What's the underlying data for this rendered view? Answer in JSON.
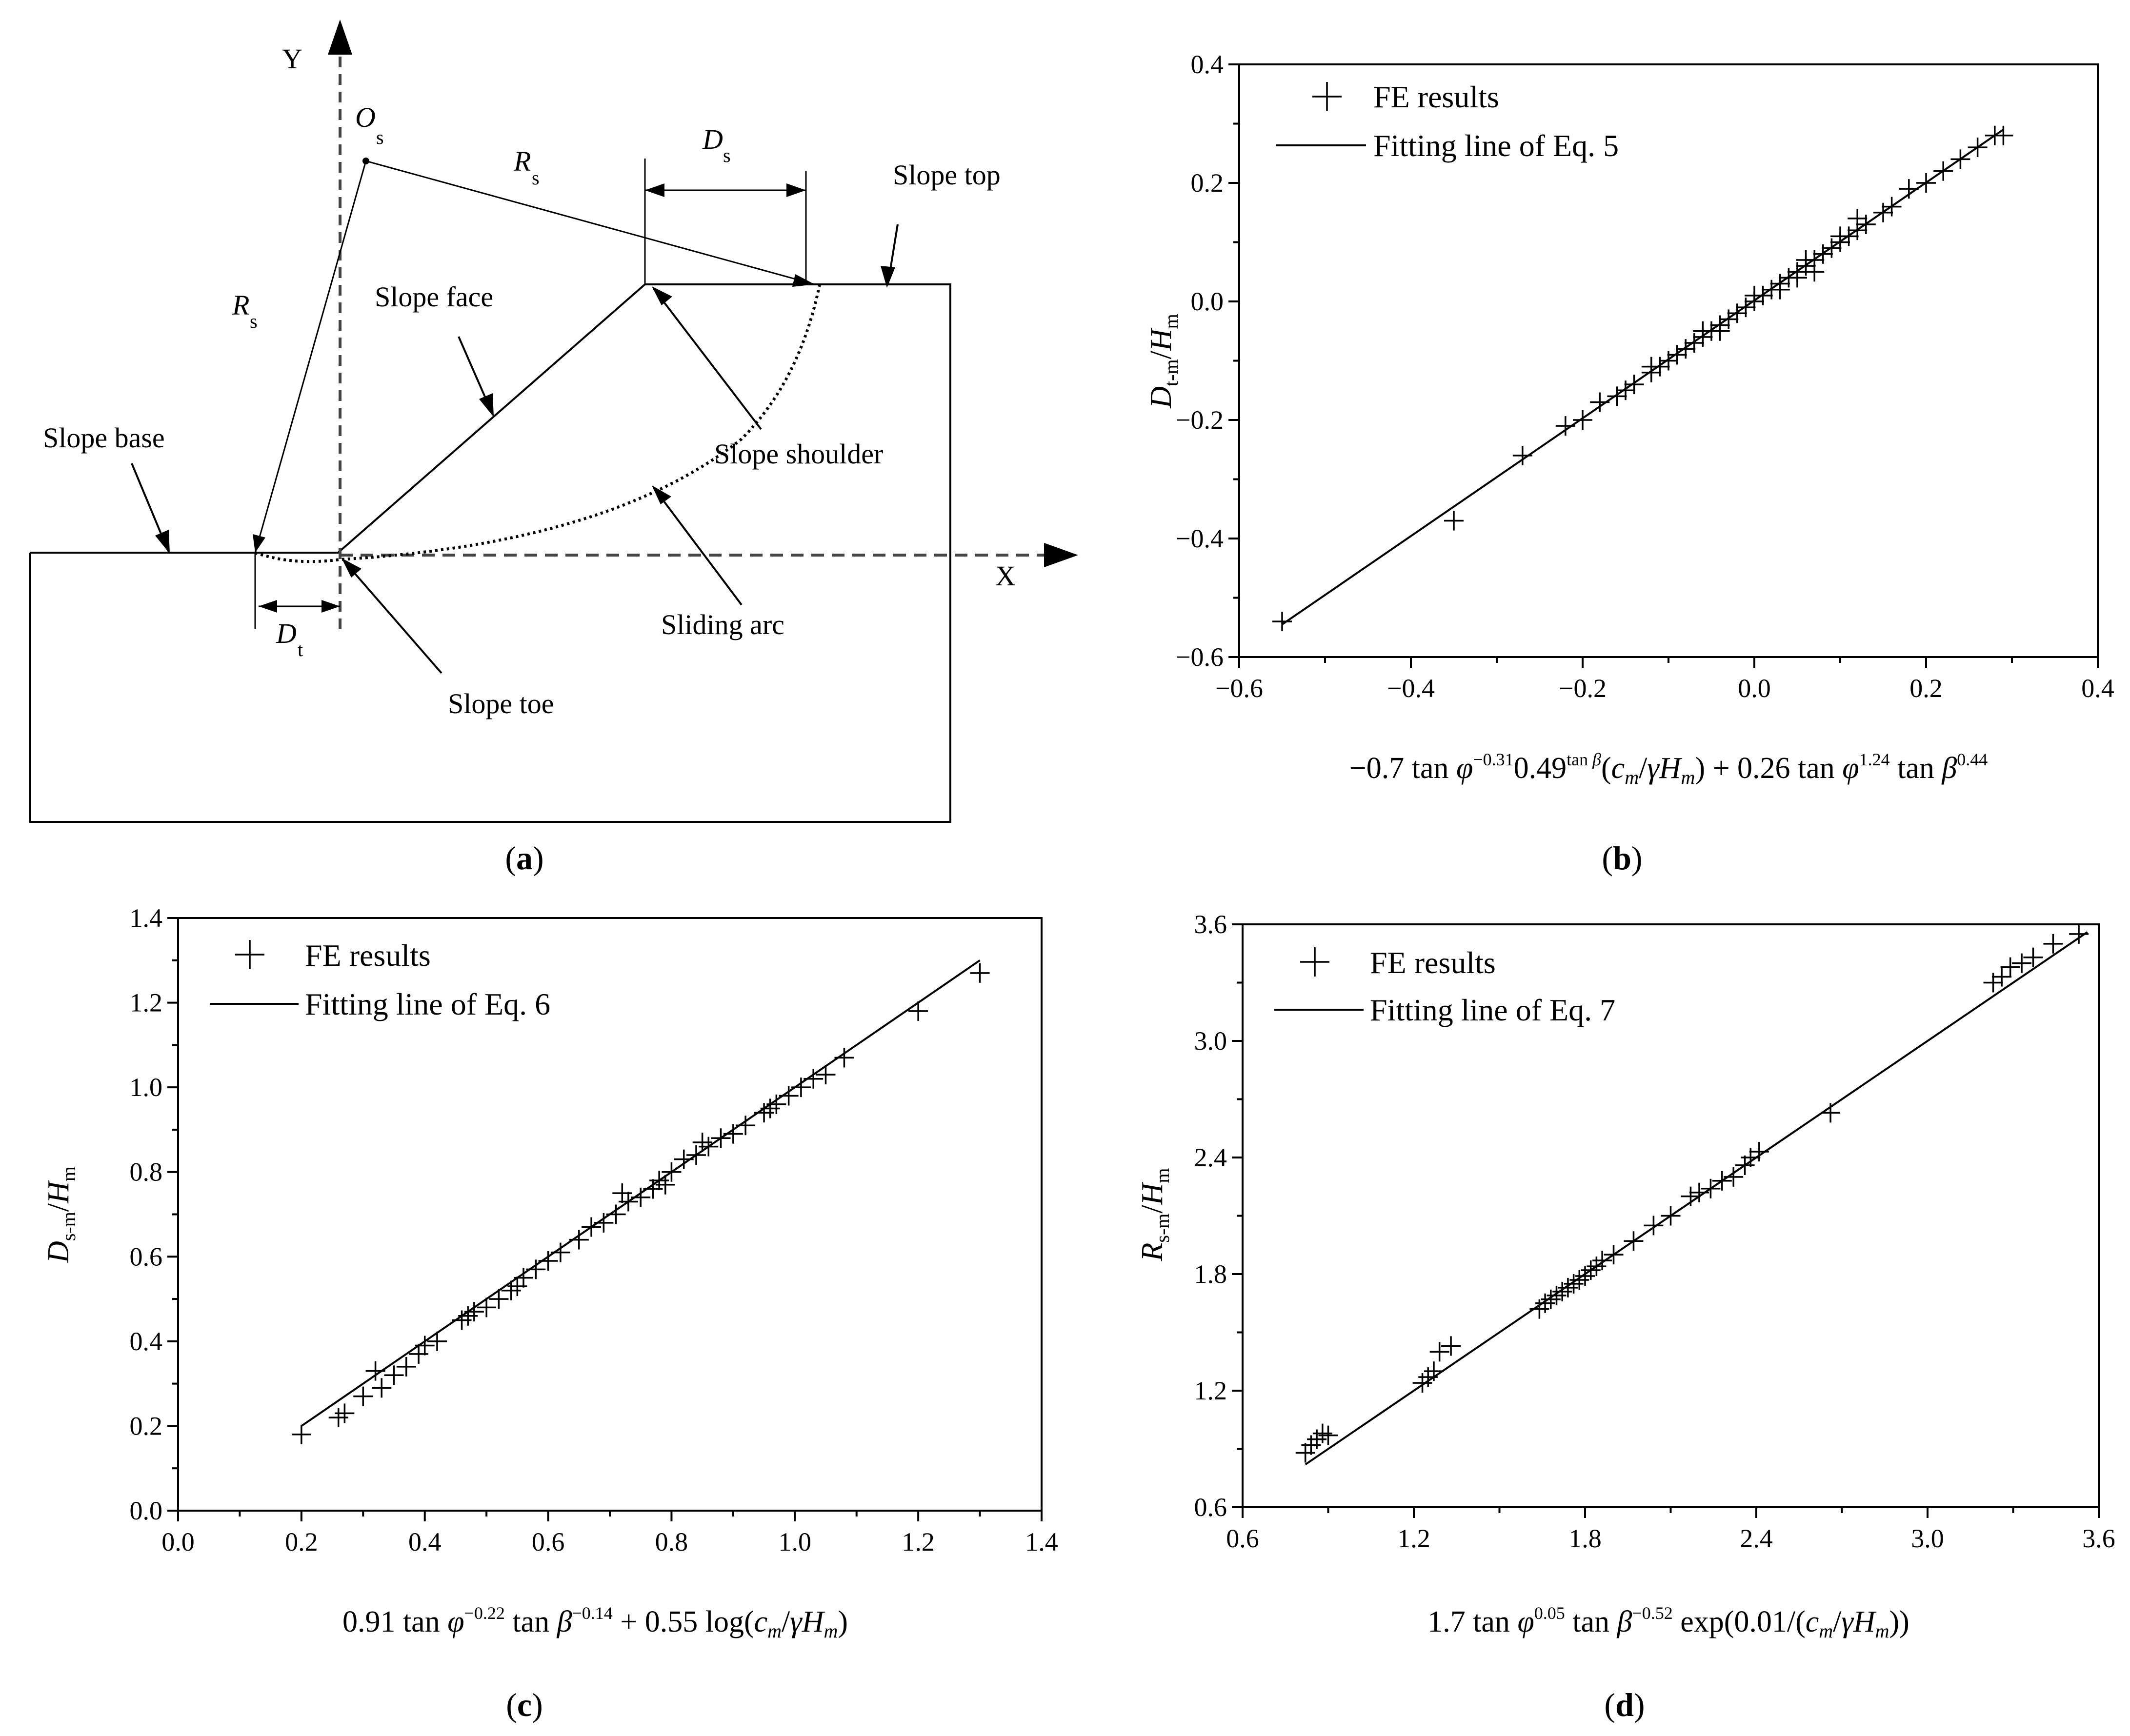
{
  "figure_a": {
    "caption": "(a)",
    "labels": {
      "y_axis": "Y",
      "x_axis": "X",
      "os": "O",
      "os_sub": "s",
      "rs_top": "R",
      "rs_top_sub": "s",
      "rs_left": "R",
      "rs_left_sub": "s",
      "ds": "D",
      "ds_sub": "s",
      "dt": "D",
      "dt_sub": "t",
      "slope_top": "Slope top",
      "slope_face": "Slope face",
      "slope_base": "Slope base",
      "slope_shoulder": "Slope shoulder",
      "sliding_arc": "Sliding arc",
      "slope_toe": "Slope toe"
    }
  },
  "chart_data": [
    {
      "id": "b",
      "type": "scatter",
      "caption": "(b)",
      "xlabel": "−0.7 tan φ^−0.31 0.49^tan β (c_m/γH_m) + 0.26 tan φ^1.24 tan β^0.44",
      "ylabel": "D_t-m/H_m",
      "xlim": [
        -0.6,
        0.4
      ],
      "ylim": [
        -0.6,
        0.4
      ],
      "xticks": [
        "−0.6",
        "−0.4",
        "−0.2",
        "0.0",
        "0.2",
        "0.4"
      ],
      "yticks": [
        "−0.6",
        "−0.4",
        "−0.2",
        "0.0",
        "0.2",
        "0.4"
      ],
      "legend": [
        "FE results",
        "Fitting line of Eq. 5"
      ],
      "fit": [
        [
          -0.55,
          -0.545
        ],
        [
          0.29,
          0.29
        ]
      ],
      "points": [
        [
          -0.55,
          -0.54
        ],
        [
          -0.35,
          -0.37
        ],
        [
          -0.27,
          -0.26
        ],
        [
          -0.22,
          -0.21
        ],
        [
          -0.2,
          -0.2
        ],
        [
          -0.18,
          -0.17
        ],
        [
          -0.16,
          -0.16
        ],
        [
          -0.15,
          -0.15
        ],
        [
          -0.14,
          -0.14
        ],
        [
          -0.12,
          -0.12
        ],
        [
          -0.11,
          -0.11
        ],
        [
          -0.1,
          -0.1
        ],
        [
          -0.09,
          -0.09
        ],
        [
          -0.08,
          -0.08
        ],
        [
          -0.07,
          -0.07
        ],
        [
          -0.06,
          -0.06
        ],
        [
          -0.05,
          -0.05
        ],
        [
          -0.04,
          -0.04
        ],
        [
          -0.03,
          -0.03
        ],
        [
          -0.02,
          -0.02
        ],
        [
          -0.01,
          -0.01
        ],
        [
          0.0,
          0.0
        ],
        [
          0.01,
          0.01
        ],
        [
          0.02,
          0.02
        ],
        [
          0.03,
          0.03
        ],
        [
          0.04,
          0.04
        ],
        [
          0.05,
          0.05
        ],
        [
          0.06,
          0.06
        ],
        [
          0.07,
          0.07
        ],
        [
          0.08,
          0.08
        ],
        [
          0.09,
          0.09
        ],
        [
          0.1,
          0.1
        ],
        [
          0.11,
          0.11
        ],
        [
          0.12,
          0.12
        ],
        [
          0.13,
          0.13
        ],
        [
          0.15,
          0.15
        ],
        [
          0.16,
          0.16
        ],
        [
          0.18,
          0.19
        ],
        [
          0.2,
          0.2
        ],
        [
          0.22,
          0.22
        ],
        [
          0.24,
          0.24
        ],
        [
          0.26,
          0.26
        ],
        [
          0.28,
          0.28
        ],
        [
          0.29,
          0.28
        ],
        [
          -0.12,
          -0.11
        ],
        [
          -0.04,
          -0.05
        ],
        [
          0.06,
          0.07
        ],
        [
          0.1,
          0.11
        ],
        [
          0.12,
          0.14
        ],
        [
          0.05,
          0.04
        ],
        [
          -0.06,
          -0.05
        ],
        [
          0.0,
          0.01
        ],
        [
          0.03,
          0.02
        ],
        [
          0.07,
          0.05
        ]
      ]
    },
    {
      "id": "c",
      "type": "scatter",
      "caption": "(c)",
      "xlabel": "0.91 tan φ^−0.22 tan β^−0.14 + 0.55 log(c_m/γH_m)",
      "ylabel": "D_s-m/H_m",
      "xlim": [
        0.0,
        1.4
      ],
      "ylim": [
        0.0,
        1.4
      ],
      "xticks": [
        "0.0",
        "0.2",
        "0.4",
        "0.6",
        "0.8",
        "1.0",
        "1.2",
        "1.4"
      ],
      "yticks": [
        "0.0",
        "0.2",
        "0.4",
        "0.6",
        "0.8",
        "1.0",
        "1.2",
        "1.4"
      ],
      "legend": [
        "FE results",
        "Fitting line of Eq. 6"
      ],
      "fit": [
        [
          0.2,
          0.2
        ],
        [
          1.3,
          1.3
        ]
      ],
      "points": [
        [
          0.2,
          0.18
        ],
        [
          0.26,
          0.22
        ],
        [
          0.27,
          0.23
        ],
        [
          0.3,
          0.27
        ],
        [
          0.32,
          0.33
        ],
        [
          0.33,
          0.29
        ],
        [
          0.35,
          0.32
        ],
        [
          0.37,
          0.34
        ],
        [
          0.39,
          0.37
        ],
        [
          0.4,
          0.39
        ],
        [
          0.42,
          0.4
        ],
        [
          0.46,
          0.45
        ],
        [
          0.48,
          0.47
        ],
        [
          0.5,
          0.48
        ],
        [
          0.52,
          0.5
        ],
        [
          0.54,
          0.52
        ],
        [
          0.56,
          0.55
        ],
        [
          0.58,
          0.57
        ],
        [
          0.6,
          0.59
        ],
        [
          0.62,
          0.61
        ],
        [
          0.65,
          0.64
        ],
        [
          0.67,
          0.67
        ],
        [
          0.69,
          0.68
        ],
        [
          0.71,
          0.7
        ],
        [
          0.73,
          0.73
        ],
        [
          0.75,
          0.74
        ],
        [
          0.77,
          0.76
        ],
        [
          0.78,
          0.78
        ],
        [
          0.8,
          0.8
        ],
        [
          0.82,
          0.83
        ],
        [
          0.84,
          0.84
        ],
        [
          0.86,
          0.86
        ],
        [
          0.88,
          0.88
        ],
        [
          0.9,
          0.89
        ],
        [
          0.92,
          0.91
        ],
        [
          0.95,
          0.94
        ],
        [
          0.97,
          0.96
        ],
        [
          0.99,
          0.98
        ],
        [
          1.01,
          1.0
        ],
        [
          1.03,
          1.02
        ],
        [
          1.05,
          1.03
        ],
        [
          1.08,
          1.07
        ],
        [
          1.2,
          1.18
        ],
        [
          1.3,
          1.27
        ],
        [
          0.47,
          0.46
        ],
        [
          0.55,
          0.53
        ],
        [
          0.72,
          0.75
        ],
        [
          0.79,
          0.77
        ],
        [
          0.85,
          0.87
        ],
        [
          0.96,
          0.95
        ]
      ]
    },
    {
      "id": "d",
      "type": "scatter",
      "caption": "(d)",
      "xlabel": "1.7 tan φ^0.05 tan β^−0.52 exp(0.01/(c_m/γH_m))",
      "ylabel": "R_s-m/H_m",
      "xlim": [
        0.6,
        3.6
      ],
      "ylim": [
        0.6,
        3.6
      ],
      "xticks": [
        "0.6",
        "1.2",
        "1.8",
        "2.4",
        "3.0",
        "3.6"
      ],
      "yticks": [
        "0.6",
        "1.2",
        "1.8",
        "2.4",
        "3.0",
        "3.6"
      ],
      "legend": [
        "FE results",
        "Fitting line of Eq. 7"
      ],
      "fit": [
        [
          0.82,
          0.82
        ],
        [
          3.56,
          3.56
        ]
      ],
      "points": [
        [
          0.82,
          0.88
        ],
        [
          0.84,
          0.92
        ],
        [
          0.86,
          0.95
        ],
        [
          0.88,
          0.98
        ],
        [
          0.9,
          0.97
        ],
        [
          1.23,
          1.24
        ],
        [
          1.25,
          1.27
        ],
        [
          1.27,
          1.3
        ],
        [
          1.29,
          1.4
        ],
        [
          1.33,
          1.43
        ],
        [
          1.64,
          1.62
        ],
        [
          1.66,
          1.65
        ],
        [
          1.68,
          1.67
        ],
        [
          1.7,
          1.69
        ],
        [
          1.72,
          1.71
        ],
        [
          1.74,
          1.73
        ],
        [
          1.76,
          1.75
        ],
        [
          1.78,
          1.77
        ],
        [
          1.8,
          1.79
        ],
        [
          1.82,
          1.82
        ],
        [
          1.84,
          1.84
        ],
        [
          1.86,
          1.87
        ],
        [
          1.9,
          1.9
        ],
        [
          1.97,
          1.97
        ],
        [
          2.04,
          2.05
        ],
        [
          2.1,
          2.1
        ],
        [
          2.17,
          2.2
        ],
        [
          2.2,
          2.22
        ],
        [
          2.24,
          2.24
        ],
        [
          2.28,
          2.28
        ],
        [
          2.32,
          2.3
        ],
        [
          2.36,
          2.36
        ],
        [
          2.38,
          2.4
        ],
        [
          2.41,
          2.43
        ],
        [
          2.66,
          2.63
        ],
        [
          3.23,
          3.3
        ],
        [
          3.26,
          3.33
        ],
        [
          3.29,
          3.38
        ],
        [
          3.33,
          3.4
        ],
        [
          3.37,
          3.43
        ],
        [
          3.44,
          3.5
        ],
        [
          3.53,
          3.55
        ]
      ]
    }
  ]
}
